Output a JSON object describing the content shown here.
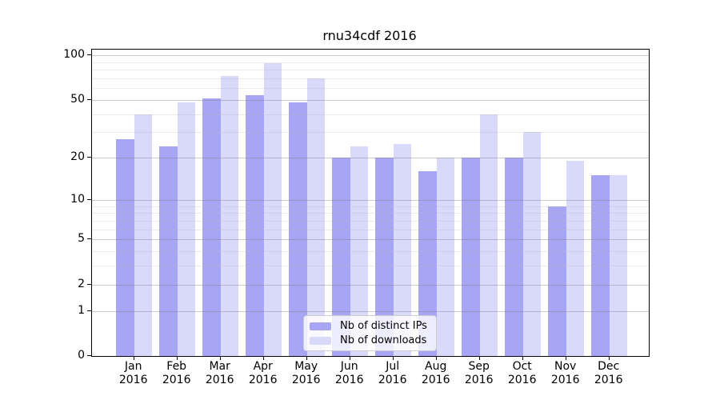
{
  "title": "rnu34cdf 2016",
  "colors": {
    "ips_bar": "#a6a6f5",
    "downloads_bar": "#d9d9f9",
    "axis": "#000000",
    "grid_major": "#c8c8c8",
    "grid_minor": "#e4e4e4",
    "plot_background": "#ffffff"
  },
  "legend": {
    "items": [
      {
        "label": "Nb of distinct IPs"
      },
      {
        "label": "Nb of downloads"
      }
    ]
  },
  "chart_data": {
    "type": "bar",
    "title": "rnu34cdf 2016",
    "categories": [
      "Jan",
      "Feb",
      "Mar",
      "Apr",
      "May",
      "Jun",
      "Jul",
      "Aug",
      "Sep",
      "Oct",
      "Nov",
      "Dec"
    ],
    "year_label": "2016",
    "series": [
      {
        "name": "Nb of distinct IPs",
        "color": "#a6a6f5",
        "values": [
          27,
          24,
          51,
          54,
          48,
          20,
          20,
          16,
          20,
          20,
          9,
          15
        ]
      },
      {
        "name": "Nb of downloads",
        "color": "#d9d9f9",
        "values": [
          40,
          48,
          73,
          89,
          70,
          24,
          25,
          20,
          40,
          30,
          19,
          15
        ]
      }
    ],
    "xlabel": "",
    "ylabel": "",
    "ylim": [
      0,
      100
    ],
    "yscale": "log1p",
    "yticks_major": [
      0,
      1,
      2,
      5,
      10,
      20,
      50,
      100
    ],
    "yticks_minor": [
      3,
      4,
      6,
      7,
      8,
      9,
      30,
      40,
      60,
      70,
      80,
      90
    ],
    "grid": true,
    "legend_position": "inside-bottom-center"
  }
}
